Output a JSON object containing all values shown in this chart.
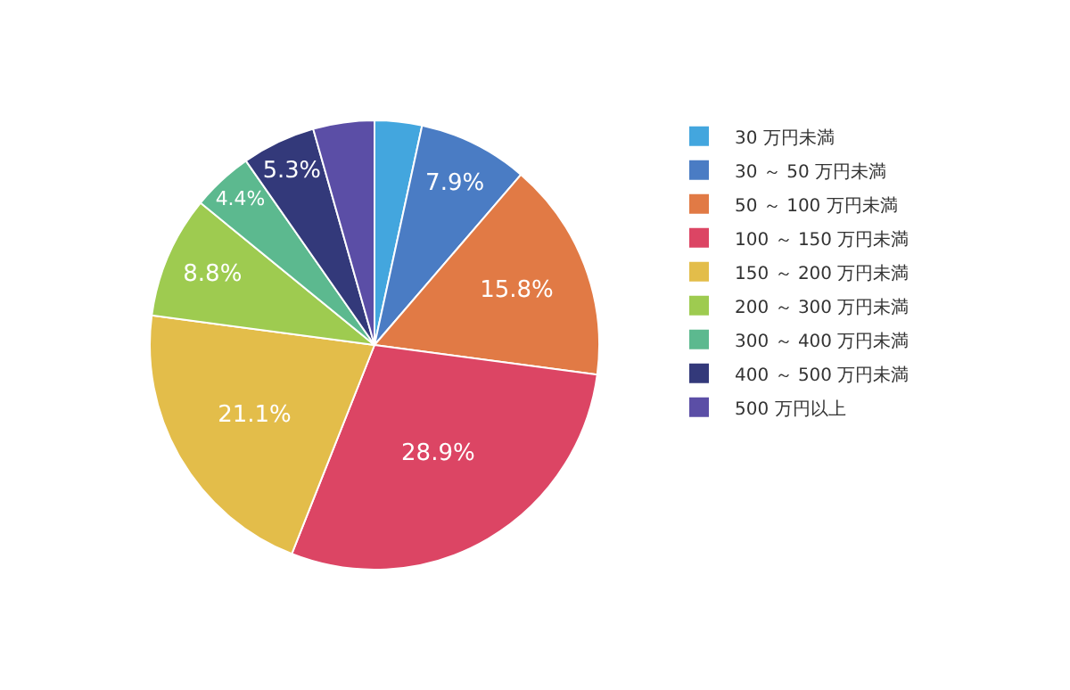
{
  "chart_data": {
    "type": "pie",
    "categories": [
      "30 万円未満",
      "30 ～ 50 万円未満",
      "50 ～ 100 万円未満",
      "100 ～ 150 万円未満",
      "150 ～ 200 万円未満",
      "200 ～ 300 万円未満",
      "300 ～ 400 万円未満",
      "400 ～ 500 万円未満",
      "500 万円以上"
    ],
    "values": [
      3.4,
      7.9,
      15.8,
      28.9,
      21.1,
      8.8,
      4.4,
      5.3,
      4.4
    ],
    "value_labels": [
      null,
      "7.9%",
      "15.8%",
      "28.9%",
      "21.1%",
      "8.8%",
      "4.4%",
      "5.3%",
      null
    ],
    "colors": [
      "#43a6de",
      "#4a7cc4",
      "#e17a45",
      "#dc4564",
      "#e3bd4a",
      "#9ecb50",
      "#5cb98f",
      "#33397a",
      "#5b4ea6"
    ],
    "legend": "right"
  }
}
